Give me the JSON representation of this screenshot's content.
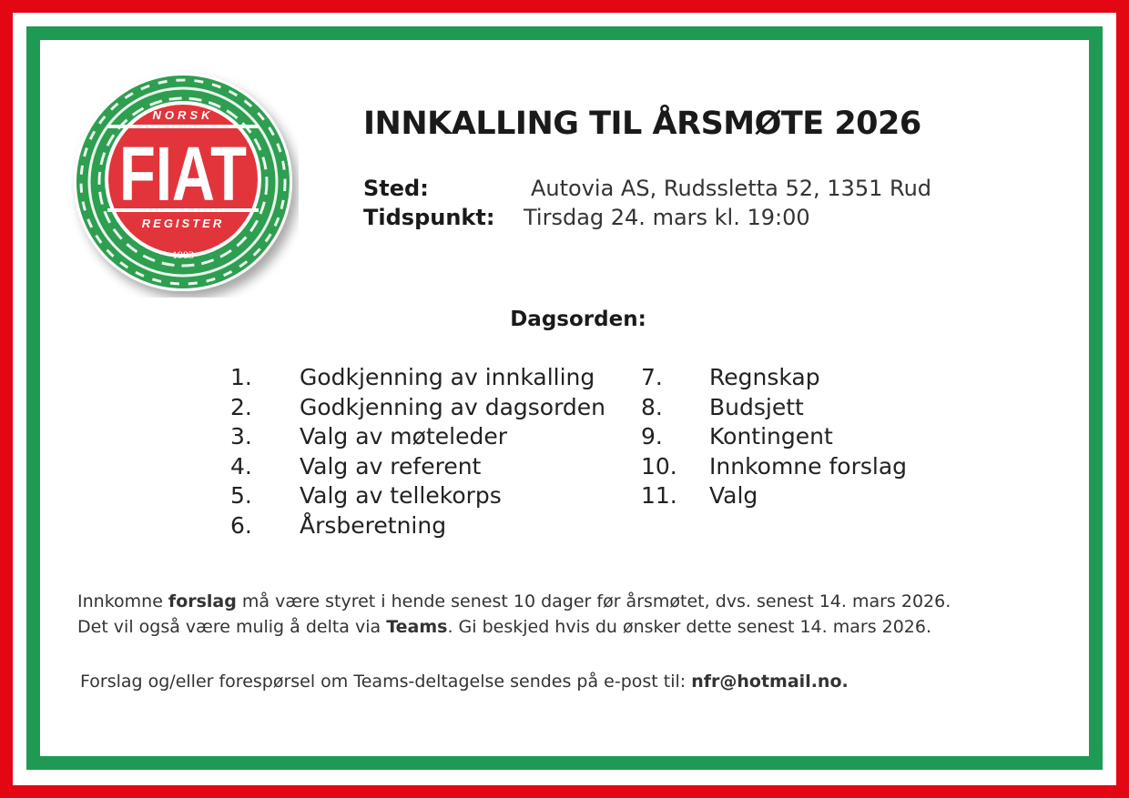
{
  "logo": {
    "top_text": "NORSK",
    "main_text": "FIAT",
    "bottom_text": "REGISTER",
    "year": "1983"
  },
  "colors": {
    "red": "#e30613",
    "green": "#1f9a55",
    "logo_red": "#e2353b"
  },
  "title": "INNKALLING TIL ÅRSMØTE 2026",
  "details": [
    {
      "label": "Sted:",
      "value": "Autovia AS, Rudssletta 52, 1351 Rud"
    },
    {
      "label": "Tidspunkt:",
      "value": "Tirsdag 24. mars kl. 19:00"
    }
  ],
  "agenda_heading": "Dagsorden:",
  "agenda": [
    {
      "num": "1.",
      "text": "Godkjenning av innkalling"
    },
    {
      "num": "2.",
      "text": "Godkjenning av dagsorden"
    },
    {
      "num": "3.",
      "text": "Valg av møteleder"
    },
    {
      "num": "4.",
      "text": "Valg av referent"
    },
    {
      "num": "5.",
      "text": "Valg av tellekorps"
    },
    {
      "num": "6.",
      "text": "Årsberetning"
    },
    {
      "num": "7.",
      "text": "Regnskap"
    },
    {
      "num": "8.",
      "text": "Budsjett"
    },
    {
      "num": "9.",
      "text": "Kontingent"
    },
    {
      "num": "10.",
      "text": "Innkomne forslag"
    },
    {
      "num": "11.",
      "text": "Valg"
    }
  ],
  "footer": {
    "line1": {
      "a": "Innkomne ",
      "b": "forslag",
      "c": " må være styret i hende senest 10 dager før årsmøtet, dvs. senest 14. mars 2026."
    },
    "line2": {
      "a": "Det vil også være mulig å delta via ",
      "b": "Teams",
      "c": ". Gi beskjed hvis du ønsker dette senest 14. mars 2026."
    },
    "line3": {
      "a": "Forslag og/eller forespørsel om Teams-deltagelse sendes på e-post til: ",
      "b": "nfr@hotmail.no."
    }
  }
}
